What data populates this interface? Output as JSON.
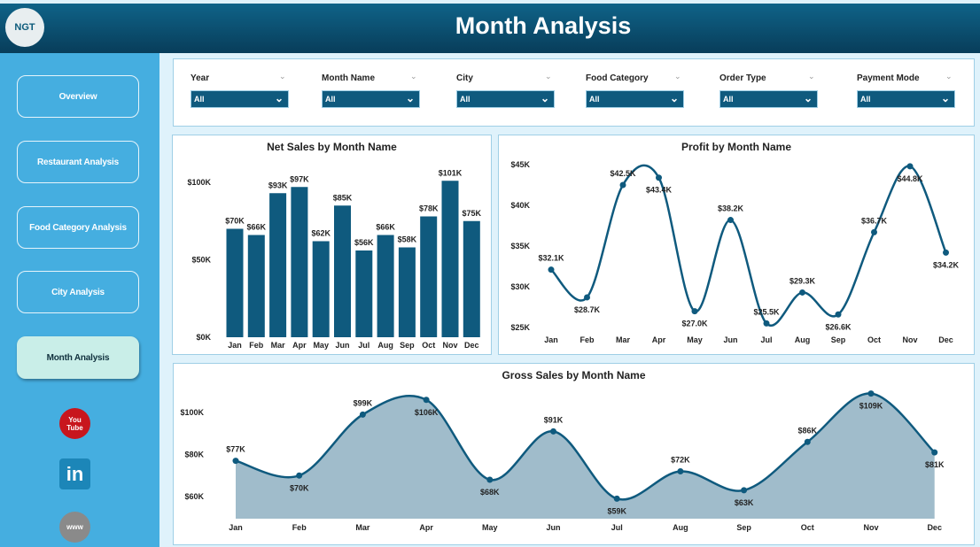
{
  "header": {
    "title": "Month Analysis",
    "logo_text": "NGT"
  },
  "sidebar": {
    "items": [
      {
        "label": "Overview"
      },
      {
        "label": "Restaurant Analysis"
      },
      {
        "label": "Food Category Analysis"
      },
      {
        "label": "City Analysis"
      },
      {
        "label": "Month Analysis",
        "active": true
      }
    ],
    "social": [
      {
        "icon": "youtube-icon",
        "text": "You Tube"
      },
      {
        "icon": "linkedin-icon",
        "text": "in"
      },
      {
        "icon": "website-globe-icon",
        "text": "www"
      }
    ]
  },
  "filters": [
    {
      "label": "Year",
      "value": "All"
    },
    {
      "label": "Month Name",
      "value": "All"
    },
    {
      "label": "City",
      "value": "All"
    },
    {
      "label": "Food Category",
      "value": "All"
    },
    {
      "label": "Order Type",
      "value": "All"
    },
    {
      "label": "Payment Mode",
      "value": "All"
    }
  ],
  "colors": {
    "accent": "#0f5a7e",
    "header": "#0a4a6a",
    "sidebar": "#45aee0",
    "area": "#a0bccb"
  },
  "chart_data": [
    {
      "type": "bar",
      "title": "Net Sales by Month Name",
      "categories": [
        "Jan",
        "Feb",
        "Mar",
        "Apr",
        "May",
        "Jun",
        "Jul",
        "Aug",
        "Sep",
        "Oct",
        "Nov",
        "Dec"
      ],
      "values": [
        70,
        66,
        93,
        97,
        62,
        85,
        56,
        66,
        58,
        78,
        101,
        75
      ],
      "labels": [
        "$70K",
        "$66K",
        "$93K",
        "$97K",
        "$62K",
        "$85K",
        "$56K",
        "$66K",
        "$58K",
        "$78K",
        "$101K",
        "$75K"
      ],
      "yticks": [
        "$0K",
        "$50K",
        "$100K"
      ],
      "ytick_values": [
        0,
        50,
        100
      ],
      "unit": "$K"
    },
    {
      "type": "line",
      "title": "Profit by Month Name",
      "categories": [
        "Jan",
        "Feb",
        "Mar",
        "Apr",
        "May",
        "Jun",
        "Jul",
        "Aug",
        "Sep",
        "Oct",
        "Nov",
        "Dec"
      ],
      "values": [
        32.1,
        28.7,
        42.5,
        43.4,
        27.0,
        38.2,
        25.5,
        29.3,
        26.6,
        36.7,
        44.8,
        34.2
      ],
      "labels": [
        "$32.1K",
        "$28.7K",
        "$42.5K",
        "$43.4K",
        "$27.0K",
        "$38.2K",
        "$25.5K",
        "$29.3K",
        "$26.6K",
        "$36.7K",
        "$44.8K",
        "$34.2K"
      ],
      "yticks": [
        "$25K",
        "$30K",
        "$35K",
        "$40K",
        "$45K"
      ],
      "ytick_values": [
        25,
        30,
        35,
        40,
        45
      ],
      "unit": "$K"
    },
    {
      "type": "area",
      "title": "Gross Sales by Month Name",
      "categories": [
        "Jan",
        "Feb",
        "Mar",
        "Apr",
        "May",
        "Jun",
        "Jul",
        "Aug",
        "Sep",
        "Oct",
        "Nov",
        "Dec"
      ],
      "values": [
        77,
        70,
        99,
        106,
        68,
        91,
        59,
        72,
        63,
        86,
        109,
        81
      ],
      "labels": [
        "$77K",
        "$70K",
        "$99K",
        "$106K",
        "$68K",
        "$91K",
        "$59K",
        "$72K",
        "$63K",
        "$86K",
        "$109K",
        "$81K"
      ],
      "yticks": [
        "$60K",
        "$80K",
        "$100K"
      ],
      "ytick_values": [
        60,
        80,
        100
      ],
      "unit": "$K"
    }
  ]
}
